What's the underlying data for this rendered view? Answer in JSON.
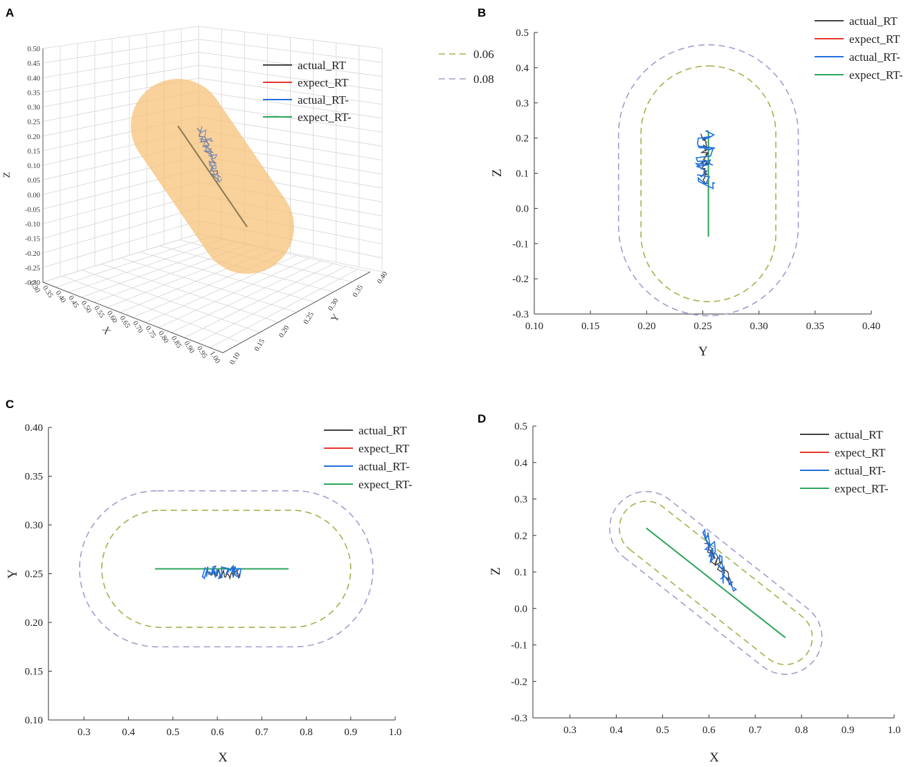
{
  "panels": [
    {
      "id": "A",
      "label": "A"
    },
    {
      "id": "B",
      "label": "B"
    },
    {
      "id": "C",
      "label": "C"
    },
    {
      "id": "D",
      "label": "D"
    }
  ],
  "legend": {
    "series": [
      {
        "name": "actual_RT",
        "color": "#404040"
      },
      {
        "name": "expect_RT",
        "color": "#e8342c"
      },
      {
        "name": "actual_RT-",
        "color": "#1f6fdc"
      },
      {
        "name": "expect_RT-",
        "color": "#2aa55a"
      }
    ],
    "boundaries": [
      {
        "name": "0.06",
        "color": "#9bb54a"
      },
      {
        "name": "0.08",
        "color": "#a59bd0"
      }
    ]
  },
  "chart_data": [
    {
      "panel": "A",
      "type": "scatter",
      "projection": "3d",
      "title": "",
      "xlabel": "X",
      "ylabel": "Y",
      "zlabel": "Z",
      "xlim": [
        0.3,
        1.0
      ],
      "ylim": [
        0.1,
        0.4
      ],
      "zlim": [
        -0.3,
        0.5
      ],
      "xticks": [
        "0.30",
        "0.35",
        "0.40",
        "0.45",
        "0.50",
        "0.55",
        "0.60",
        "0.65",
        "0.70",
        "0.75",
        "0.80",
        "0.85",
        "0.90",
        "0.95",
        "1.00"
      ],
      "yticks": [
        "0.10",
        "0.15",
        "0.20",
        "0.25",
        "0.30",
        "0.35",
        "0.40"
      ],
      "zticks": [
        "0.50",
        "0.45",
        "0.40",
        "0.35",
        "0.30",
        "0.25",
        "0.20",
        "0.15",
        "0.10",
        "0.05",
        "0.00",
        "-0.05",
        "-0.10",
        "-0.15",
        "-0.20",
        "-0.25",
        "-0.30"
      ],
      "expected_path": {
        "start": [
          0.46,
          0.255,
          0.22
        ],
        "end": [
          0.76,
          0.255,
          -0.08
        ]
      },
      "tolerance_tube_radius": 0.06,
      "actual_path_extent": {
        "x": [
          0.58,
          0.65
        ],
        "y": [
          0.245,
          0.258
        ],
        "z": [
          0.06,
          0.22
        ]
      }
    },
    {
      "panel": "B",
      "type": "line",
      "projection": "Y-Z",
      "xlabel": "Y",
      "ylabel": "Z",
      "xlim": [
        0.1,
        0.4
      ],
      "ylim": [
        -0.3,
        0.5
      ],
      "xticks": [
        "0.10",
        "0.15",
        "0.20",
        "0.25",
        "0.30",
        "0.35",
        "0.40"
      ],
      "yticks": [
        "0.5",
        "0.4",
        "0.3",
        "0.2",
        "0.1",
        "0.0",
        "-0.1",
        "-0.2",
        "-0.3"
      ],
      "expected": {
        "y": [
          0.255,
          0.255
        ],
        "z": [
          0.22,
          -0.08
        ]
      },
      "boundary_006": {
        "y": [
          0.195,
          0.315
        ],
        "z": [
          -0.265,
          0.405
        ]
      },
      "boundary_008": {
        "y": [
          0.175,
          0.335
        ],
        "z": [
          -0.305,
          0.465
        ]
      },
      "actual_extent": {
        "y": [
          0.245,
          0.258
        ],
        "z": [
          0.06,
          0.22
        ]
      }
    },
    {
      "panel": "C",
      "type": "line",
      "projection": "X-Y",
      "xlabel": "X",
      "ylabel": "Y",
      "xlim": [
        0.22,
        1.0
      ],
      "ylim": [
        0.1,
        0.4
      ],
      "xticks": [
        "0.3",
        "0.4",
        "0.5",
        "0.6",
        "0.7",
        "0.8",
        "0.9",
        "1.0"
      ],
      "yticks": [
        "0.40",
        "0.35",
        "0.30",
        "0.25",
        "0.20",
        "0.15",
        "0.10"
      ],
      "expected": {
        "x": [
          0.46,
          0.76
        ],
        "y": [
          0.255,
          0.255
        ]
      },
      "boundary_006": {
        "x": [
          0.34,
          0.9
        ],
        "y": [
          0.195,
          0.315
        ]
      },
      "boundary_008": {
        "x": [
          0.29,
          0.95
        ],
        "y": [
          0.175,
          0.335
        ]
      },
      "actual_extent": {
        "x": [
          0.57,
          0.65
        ],
        "y": [
          0.245,
          0.258
        ]
      }
    },
    {
      "panel": "D",
      "type": "line",
      "projection": "X-Z",
      "xlabel": "X",
      "ylabel": "Z",
      "xlim": [
        0.22,
        1.0
      ],
      "ylim": [
        -0.3,
        0.5
      ],
      "xticks": [
        "0.3",
        "0.4",
        "0.5",
        "0.6",
        "0.7",
        "0.8",
        "0.9",
        "1.0"
      ],
      "yticks": [
        "0.5",
        "0.4",
        "0.3",
        "0.2",
        "0.1",
        "0.0",
        "-0.1",
        "-0.2",
        "-0.3"
      ],
      "expected": {
        "x": [
          0.465,
          0.765
        ],
        "z": [
          0.22,
          -0.08
        ]
      },
      "actual_extent": {
        "x": [
          0.58,
          0.65
        ],
        "z": [
          0.06,
          0.22
        ]
      }
    }
  ]
}
